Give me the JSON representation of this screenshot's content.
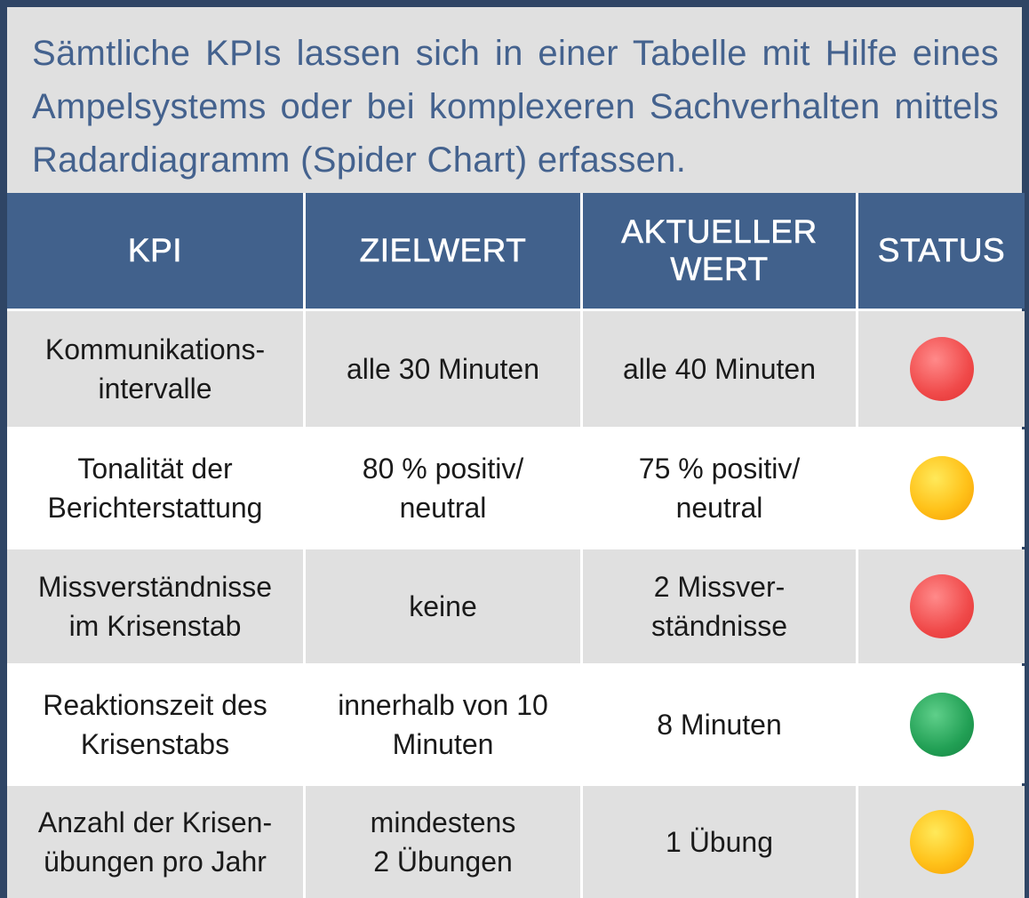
{
  "intro": "Sämtliche KPIs lassen sich in einer Tabelle mit Hilfe eines Ampelsystems oder bei komplexeren Sachverhalten mittels Radardiagramm (Spider Chart) erfassen.",
  "table": {
    "headers": [
      "KPI",
      "ZIELWERT",
      "AKTUELLER\nWERT",
      "STATUS"
    ],
    "rows": [
      {
        "kpi": "Kommunikations-\nintervalle",
        "target": "alle 30 Minuten",
        "actual": "alle 40 Minuten",
        "status": "red"
      },
      {
        "kpi": "Tonalität der\nBerichterstattung",
        "target": "80 % positiv/\nneutral",
        "actual": "75 % positiv/\nneutral",
        "status": "yellow"
      },
      {
        "kpi": "Missverständnisse\nim Krisenstab",
        "target": "keine",
        "actual": "2 Missver-\nständnisse",
        "status": "red"
      },
      {
        "kpi": "Reaktionszeit des\nKrisenstabs",
        "target": "innerhalb von 10\nMinuten",
        "actual": "8 Minuten",
        "status": "green"
      },
      {
        "kpi": "Anzahl der Krisen-\nübungen pro Jahr",
        "target": "mindestens\n2 Übungen",
        "actual": "1 Übung",
        "status": "yellow"
      }
    ]
  },
  "colors": {
    "frame": "#2f4565",
    "header": "#41618c",
    "intro_text": "#44628e",
    "red": "#f04a4a",
    "yellow": "#ffc21a",
    "green": "#22a055"
  }
}
